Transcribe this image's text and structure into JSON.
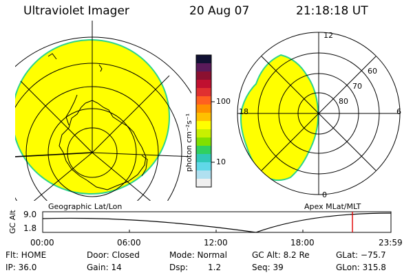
{
  "header": {
    "title": "Ultraviolet Imager",
    "date": "20 Aug 07",
    "time": "21:18:18 UT"
  },
  "geo_panel": {
    "caption": "Geographic Lat/Lon"
  },
  "apex_panel": {
    "caption": "Apex MLat/MLT",
    "mlt_labels": {
      "top": "12",
      "left": "18",
      "right": "6",
      "bottom": "0"
    },
    "lat_labels": [
      "60",
      "70",
      "80"
    ]
  },
  "colorbar": {
    "unit": "photon cm⁻²s⁻¹",
    "ticks": [
      "100",
      "10"
    ],
    "colors": [
      "#111133",
      "#5a1a5a",
      "#8b1030",
      "#c01030",
      "#e03030",
      "#ff6020",
      "#ff9000",
      "#ffc000",
      "#ffff00",
      "#c8f000",
      "#80e000",
      "#30d060",
      "#30c8b8",
      "#60d8e8",
      "#b0e0f0",
      "#f0f0f0"
    ]
  },
  "gc_alt_plot": {
    "ylabel": "GC Alt",
    "ymax": "9.0",
    "ymin": "1.8",
    "xticks": [
      "00:00",
      "06:00",
      "12:00",
      "18:00",
      "23:59"
    ]
  },
  "status": {
    "flt": "Flt: HOME",
    "ip": "IP: 36.0",
    "door": "Door: Closed",
    "gain": "Gain: 14",
    "mode": "Mode: Normal",
    "dsp_label": "Dsp:",
    "dsp_value": "1.2",
    "gc_alt": "GC Alt: 8.2 Re",
    "seq": "Seq: 39",
    "glat": "GLat: −75.7",
    "glon": "GLon: 315.8"
  }
}
